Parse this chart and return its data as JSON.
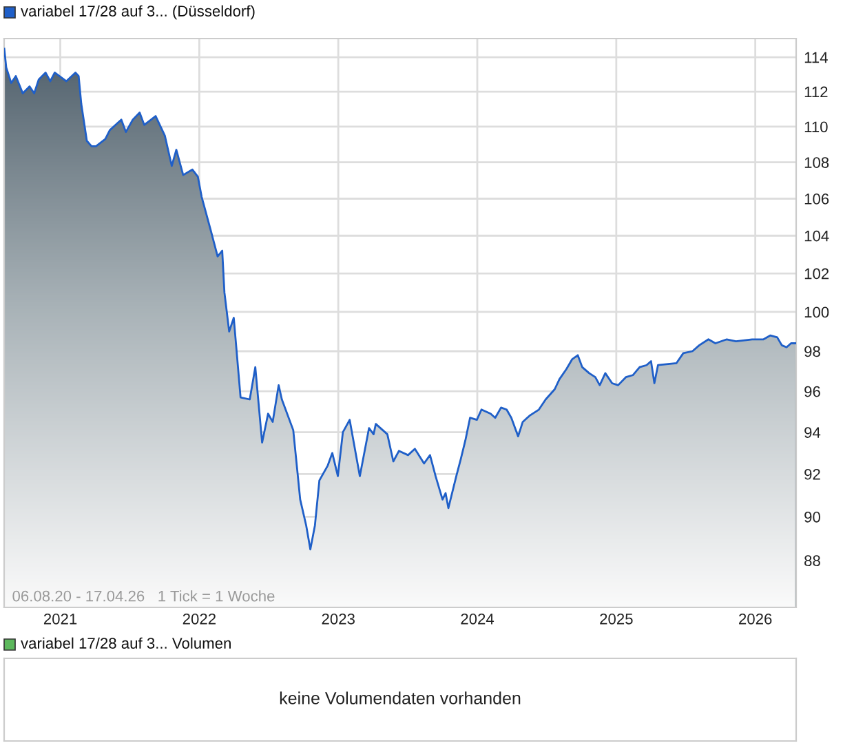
{
  "chart_data": [
    {
      "type": "area",
      "log": "y",
      "grid": true,
      "legend": "top left",
      "xlim": [
        2020.596,
        2026.294
      ],
      "xticks": [
        2021,
        2022,
        2023,
        2024,
        2025,
        2026
      ],
      "ylim": [
        85.9,
        115.1
      ],
      "yticks": [
        88,
        90,
        92,
        94,
        96,
        98,
        100,
        102,
        104,
        106,
        108,
        110,
        112,
        114
      ],
      "annotations": [
        "06.08.20 - 17.04.26   1 Tick = 1 Woche"
      ],
      "series": [
        {
          "name": "variabel 17/28 auf 3... (Düsseldorf)",
          "color": "#1f5fc8",
          "x": [
            2020.597,
            2020.611,
            2020.647,
            2020.68,
            2020.73,
            2020.779,
            2020.812,
            2020.845,
            2020.894,
            2020.928,
            2020.96,
            2021.043,
            2021.109,
            2021.132,
            2021.151,
            2021.191,
            2021.225,
            2021.257,
            2021.324,
            2021.356,
            2021.439,
            2021.472,
            2021.522,
            2021.571,
            2021.604,
            2021.686,
            2021.752,
            2021.802,
            2021.835,
            2021.884,
            2021.95,
            2021.99,
            2022.017,
            2022.082,
            2022.132,
            2022.165,
            2022.181,
            2022.215,
            2022.248,
            2022.297,
            2022.363,
            2022.403,
            2022.452,
            2022.495,
            2022.528,
            2022.571,
            2022.594,
            2022.676,
            2022.726,
            2022.769,
            2022.799,
            2022.832,
            2022.864,
            2022.924,
            2022.957,
            2022.997,
            2023.033,
            2023.082,
            2023.155,
            2023.221,
            2023.254,
            2023.27,
            2023.353,
            2023.396,
            2023.436,
            2023.502,
            2023.551,
            2023.617,
            2023.66,
            2023.7,
            2023.75,
            2023.772,
            2023.792,
            2023.849,
            2023.881,
            2023.914,
            2023.948,
            2023.997,
            2024.03,
            2024.096,
            2024.129,
            2024.171,
            2024.211,
            2024.245,
            2024.294,
            2024.327,
            2024.376,
            2024.443,
            2024.492,
            2024.557,
            2024.591,
            2024.641,
            2024.683,
            2024.723,
            2024.755,
            2024.805,
            2024.849,
            2024.881,
            2024.921,
            2024.97,
            2025.013,
            2025.069,
            2025.119,
            2025.168,
            2025.218,
            2025.25,
            2025.274,
            2025.3,
            2025.433,
            2025.482,
            2025.548,
            2025.597,
            2025.663,
            2025.713,
            2025.795,
            2025.861,
            2025.977,
            2026.059,
            2026.109,
            2026.158,
            2026.191,
            2026.225,
            2026.257,
            2026.29
          ],
          "values": [
            114.5,
            113.4,
            112.5,
            112.9,
            111.9,
            112.3,
            111.9,
            112.7,
            113.1,
            112.6,
            113.1,
            112.6,
            113.1,
            112.9,
            111.3,
            109.2,
            108.9,
            108.9,
            109.3,
            109.8,
            110.4,
            109.7,
            110.4,
            110.8,
            110.1,
            110.6,
            109.5,
            107.8,
            108.7,
            107.3,
            107.6,
            107.2,
            106.1,
            104.3,
            102.9,
            103.2,
            101.0,
            99.0,
            99.7,
            95.7,
            95.6,
            97.2,
            93.5,
            94.9,
            94.5,
            96.3,
            95.6,
            94.1,
            90.8,
            89.6,
            88.5,
            89.6,
            91.7,
            92.4,
            93.0,
            91.9,
            94.0,
            94.6,
            91.9,
            94.2,
            93.9,
            94.4,
            93.9,
            92.6,
            93.1,
            92.9,
            93.2,
            92.5,
            92.9,
            91.9,
            90.8,
            91.1,
            90.4,
            91.9,
            92.7,
            93.6,
            94.7,
            94.6,
            95.1,
            94.9,
            94.7,
            95.2,
            95.1,
            94.7,
            93.8,
            94.5,
            94.8,
            95.1,
            95.6,
            96.1,
            96.6,
            97.1,
            97.6,
            97.8,
            97.2,
            96.9,
            96.7,
            96.3,
            96.9,
            96.4,
            96.3,
            96.7,
            96.8,
            97.2,
            97.3,
            97.5,
            96.4,
            97.3,
            97.4,
            97.9,
            98.0,
            98.3,
            98.6,
            98.4,
            98.6,
            98.5,
            98.6,
            98.6,
            98.8,
            98.7,
            98.3,
            98.2,
            98.4,
            98.4
          ]
        }
      ]
    },
    {
      "type": "other",
      "title": "variabel 17/28 auf 3... Volumen",
      "color": "#5cb85c",
      "annotations": [
        "keine Volumendaten vorhanden"
      ]
    }
  ]
}
